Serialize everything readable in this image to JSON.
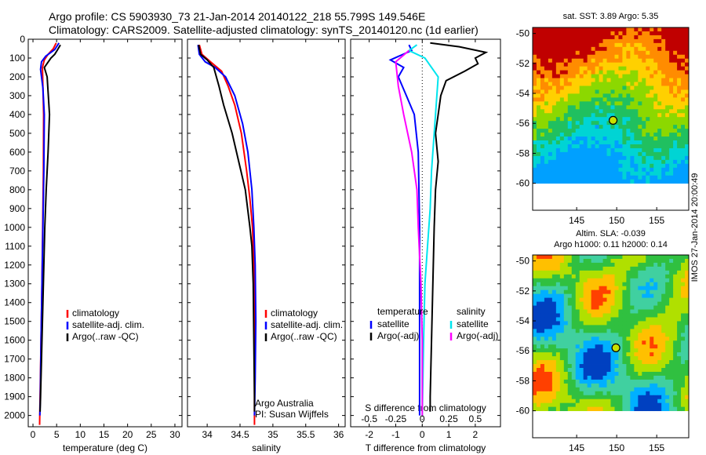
{
  "header": {
    "line1": "Argo profile: CS 5903930_73 21-Jan-2014 20140122_218 55.799S 149.546E",
    "line2": "Climatology: CARS2009. Satellite-adjusted climatology: synTS_20140120.nc (1d earlier)"
  },
  "footer": {
    "imos_stamp": "IMOS 27-Jan-2014 20:00:49"
  },
  "colors": {
    "climatology": "#ff0000",
    "satellite_adj": "#0000ff",
    "argo": "#000000",
    "satellite_salinity": "#00e5ee",
    "argo_salinity_diff": "#ff00ff"
  },
  "depth_axis": {
    "ticks": [
      0,
      100,
      200,
      300,
      400,
      500,
      600,
      700,
      800,
      900,
      1000,
      1100,
      1200,
      1300,
      1400,
      1500,
      1600,
      1700,
      1800,
      1900,
      2000
    ],
    "ylim": [
      0,
      2060
    ],
    "inverted": true
  },
  "chart_data": [
    {
      "id": "temperature",
      "type": "line",
      "xlabel": "temperature (deg C)",
      "xlim": [
        -1,
        31.5
      ],
      "xticks": [
        0,
        5,
        10,
        15,
        20,
        25,
        30
      ],
      "legend": {
        "items": [
          "climatology",
          "satellite-adj. clim.",
          "Argo(..raw -QC)"
        ]
      },
      "series": [
        {
          "name": "climatology",
          "color": "#ff0000",
          "points": [
            [
              4.9,
              20
            ],
            [
              4.3,
              50
            ],
            [
              3.2,
              80
            ],
            [
              2.4,
              110
            ],
            [
              2.0,
              150
            ],
            [
              2.1,
              250
            ],
            [
              2.25,
              400
            ],
            [
              2.2,
              700
            ],
            [
              2.05,
              1000
            ],
            [
              1.9,
              1300
            ],
            [
              1.7,
              1600
            ],
            [
              1.5,
              1900
            ],
            [
              1.4,
              2050
            ]
          ]
        },
        {
          "name": "satellite-adj. clim.",
          "color": "#0000ff",
          "points": [
            [
              5.5,
              20
            ],
            [
              4.6,
              55
            ],
            [
              2.7,
              90
            ],
            [
              1.8,
              120
            ],
            [
              1.6,
              160
            ],
            [
              2.1,
              260
            ],
            [
              2.4,
              400
            ],
            [
              2.3,
              700
            ],
            [
              2.1,
              1000
            ],
            [
              1.9,
              1300
            ],
            [
              1.7,
              1600
            ],
            [
              1.55,
              1900
            ],
            [
              1.45,
              2000
            ]
          ]
        },
        {
          "name": "Argo(..raw -QC)",
          "color": "#000000",
          "points": [
            [
              5.8,
              30
            ],
            [
              5.1,
              60
            ],
            [
              4.6,
              80
            ],
            [
              3.8,
              100
            ],
            [
              2.4,
              150
            ],
            [
              3.0,
              200
            ],
            [
              3.5,
              400
            ],
            [
              3.2,
              600
            ],
            [
              2.8,
              800
            ],
            [
              2.5,
              1000
            ],
            [
              2.2,
              1300
            ],
            [
              1.9,
              1600
            ],
            [
              1.6,
              1900
            ],
            [
              1.5,
              1980
            ]
          ]
        }
      ]
    },
    {
      "id": "salinity",
      "type": "line",
      "xlabel": "salinity",
      "xlim": [
        33.7,
        36.1
      ],
      "xticks": [
        34,
        34.5,
        35,
        35.5,
        36
      ],
      "legend": {
        "items": [
          "climatology",
          "satellite-adj. clim.",
          "Argo(..raw -QC)"
        ]
      },
      "annotations": [
        "Argo Australia",
        "PI: Susan Wijffels"
      ],
      "series": [
        {
          "name": "climatology",
          "color": "#ff0000",
          "points": [
            [
              33.88,
              30
            ],
            [
              33.92,
              80
            ],
            [
              34.05,
              120
            ],
            [
              34.22,
              170
            ],
            [
              34.32,
              250
            ],
            [
              34.42,
              350
            ],
            [
              34.52,
              500
            ],
            [
              34.6,
              700
            ],
            [
              34.65,
              850
            ],
            [
              34.69,
              1000
            ],
            [
              34.71,
              1200
            ],
            [
              34.72,
              1500
            ],
            [
              34.72,
              1800
            ],
            [
              34.72,
              2050
            ]
          ]
        },
        {
          "name": "satellite-adj. clim.",
          "color": "#0000ff",
          "points": [
            [
              33.86,
              30
            ],
            [
              33.88,
              80
            ],
            [
              33.97,
              120
            ],
            [
              34.12,
              150
            ],
            [
              34.28,
              200
            ],
            [
              34.42,
              300
            ],
            [
              34.54,
              450
            ],
            [
              34.62,
              600
            ],
            [
              34.68,
              800
            ],
            [
              34.71,
              1000
            ],
            [
              34.73,
              1200
            ],
            [
              34.74,
              1500
            ],
            [
              34.73,
              1800
            ],
            [
              34.72,
              2000
            ]
          ]
        },
        {
          "name": "Argo(..raw -QC)",
          "color": "#000000",
          "points": [
            [
              33.87,
              30
            ],
            [
              33.9,
              80
            ],
            [
              34.0,
              110
            ],
            [
              34.1,
              150
            ],
            [
              34.18,
              250
            ],
            [
              34.25,
              350
            ],
            [
              34.38,
              500
            ],
            [
              34.48,
              650
            ],
            [
              34.58,
              800
            ],
            [
              34.65,
              1000
            ],
            [
              34.68,
              1100
            ],
            [
              34.7,
              1300
            ],
            [
              34.71,
              1600
            ],
            [
              34.72,
              1900
            ],
            [
              34.72,
              1980
            ]
          ]
        }
      ]
    },
    {
      "id": "difference",
      "type": "line",
      "xlabel": "T difference from climatology",
      "top_label": "S difference from climatology",
      "xlim": [
        -2.7,
        2.95
      ],
      "xticks": [
        -2,
        -1,
        0,
        1,
        2
      ],
      "s_ticks": [
        {
          "label": "-0.5",
          "t_pos": -2
        },
        {
          "label": "-0.25",
          "t_pos": -1
        },
        {
          "label": "0",
          "t_pos": 0
        },
        {
          "label": "0.25",
          "t_pos": 1
        },
        {
          "label": "0.5",
          "t_pos": 2
        }
      ],
      "legend_left": {
        "title": "temperature",
        "items": [
          "satellite",
          "Argo(-adj)"
        ]
      },
      "legend_right": {
        "title": "salinity",
        "items": [
          "satellite",
          "Argo(-adj)"
        ]
      },
      "series": [
        {
          "name": "temperature satellite",
          "color": "#0000ff",
          "points": [
            [
              -0.5,
              30
            ],
            [
              -0.4,
              60
            ],
            [
              -1.2,
              110
            ],
            [
              -0.7,
              150
            ],
            [
              -0.9,
              200
            ],
            [
              -0.6,
              300
            ],
            [
              -0.3,
              400
            ],
            [
              -0.15,
              600
            ],
            [
              -0.1,
              1000
            ],
            [
              -0.1,
              1500
            ],
            [
              -0.1,
              2000
            ]
          ]
        },
        {
          "name": "temperature Argo(-adj)",
          "color": "#000000",
          "points": [
            [
              0.3,
              20
            ],
            [
              1.4,
              40
            ],
            [
              2.4,
              70
            ],
            [
              2.0,
              100
            ],
            [
              2.1,
              130
            ],
            [
              1.6,
              170
            ],
            [
              0.9,
              220
            ],
            [
              0.7,
              300
            ],
            [
              0.6,
              400
            ],
            [
              0.5,
              500
            ],
            [
              0.6,
              650
            ],
            [
              0.5,
              800
            ],
            [
              0.45,
              1000
            ],
            [
              0.4,
              1300
            ],
            [
              0.35,
              1600
            ],
            [
              0.3,
              1900
            ],
            [
              0.3,
              1980
            ]
          ]
        },
        {
          "name": "salinity satellite",
          "color": "#00e5ee",
          "points": [
            [
              -0.2,
              30
            ],
            [
              -0.5,
              60
            ],
            [
              0.1,
              100
            ],
            [
              0.6,
              200
            ],
            [
              0.55,
              300
            ],
            [
              0.45,
              500
            ],
            [
              0.35,
              700
            ],
            [
              0.3,
              900
            ],
            [
              0.2,
              1100
            ],
            [
              0.1,
              1300
            ],
            [
              0.05,
              1600
            ],
            [
              0,
              2000
            ]
          ]
        },
        {
          "name": "salinity Argo(-adj)",
          "color": "#ff00ff",
          "points": [
            [
              -0.5,
              60
            ],
            [
              -1.0,
              120
            ],
            [
              -0.9,
              250
            ],
            [
              -0.7,
              400
            ],
            [
              -0.4,
              600
            ],
            [
              -0.2,
              800
            ],
            [
              -0.15,
              1000
            ],
            [
              -0.05,
              1300
            ],
            [
              0,
              1600
            ],
            [
              0,
              2000
            ]
          ]
        }
      ]
    }
  ],
  "maps": [
    {
      "id": "sst-map",
      "title": "sat. SST: 3.89 Argo: 5.35",
      "title2": "",
      "xticks": [
        "145",
        "150",
        "155"
      ],
      "yticks": [
        "-50",
        "-52",
        "-54",
        "-56",
        "-58",
        "-60"
      ],
      "xlim": [
        139.5,
        159
      ],
      "ylim": [
        -61.8,
        -49.6
      ],
      "data_ylim": [
        -49.6,
        -60
      ],
      "marker": {
        "lon": 149.55,
        "lat": -55.8
      },
      "palette": [
        "#00a0ff",
        "#00d4d4",
        "#20c060",
        "#8cd800",
        "#ffd000",
        "#ff8c00",
        "#c00000"
      ]
    },
    {
      "id": "sla-map",
      "title": "Altim. SLA: -0.039",
      "title2": "Argo h1000: 0.11 h2000: 0.14",
      "xticks": [
        "145",
        "150",
        "155"
      ],
      "yticks": [
        "-50",
        "-52",
        "-54",
        "-56",
        "-58",
        "-60"
      ],
      "xlim": [
        139.5,
        159
      ],
      "ylim": [
        -61.8,
        -49.6
      ],
      "data_ylim": [
        -49.6,
        -60
      ],
      "marker": {
        "lon": 149.9,
        "lat": -55.8
      },
      "palette": [
        "#0040c0",
        "#00b0ff",
        "#40d0a0",
        "#30c040",
        "#b0e000",
        "#ffc000",
        "#ff4000"
      ]
    }
  ]
}
